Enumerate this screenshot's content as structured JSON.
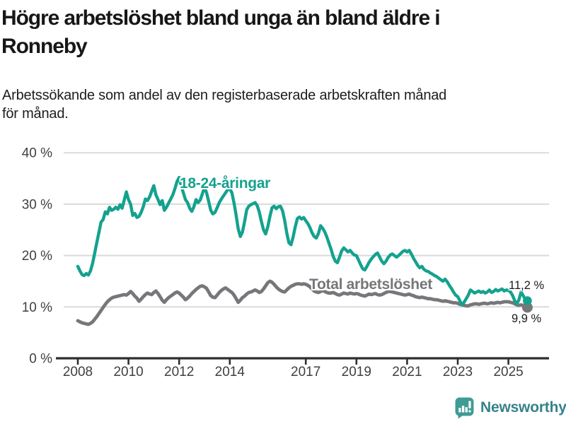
{
  "header": {
    "title_lines": [
      "Högre arbetslöshet bland unga än bland äldre i",
      "Ronneby"
    ],
    "subtitle_lines": [
      "Arbetssökande som andel av den registerbaserade arbetskraften månad",
      "för månad."
    ]
  },
  "chart_data": {
    "type": "line",
    "title": "Högre arbetslöshet bland unga än bland äldre i Ronneby",
    "subtitle": "Arbetssökande som andel av den registerbaserade arbetskraften månad för månad.",
    "x_start_year": 2008,
    "x_months_per_point": 1,
    "x_ticks": [
      2008,
      2010,
      2012,
      2014,
      2017,
      2019,
      2021,
      2023,
      2025
    ],
    "y_ticks": [
      0,
      10,
      20,
      30,
      40
    ],
    "y_tick_suffix": " %",
    "ylim": [
      0,
      40
    ],
    "grid": true,
    "legend_position": "inline-labels",
    "grid_color": "#dadada",
    "axis_color": "#2e2e2e",
    "tick_text_color": "#404040",
    "series": [
      {
        "name": "18-24-åringar",
        "color": "#14a28e",
        "end_label": "11,2 %",
        "end_value": 11.2,
        "values": [
          17.9,
          17.0,
          16.3,
          16.1,
          16.5,
          16.2,
          17.0,
          18.5,
          20.5,
          22.5,
          24.5,
          26.5,
          27.0,
          28.5,
          28.1,
          29.4,
          28.8,
          29.0,
          29.4,
          29.0,
          29.9,
          29.2,
          30.8,
          32.4,
          30.9,
          30.0,
          27.8,
          28.2,
          27.4,
          27.6,
          28.4,
          29.5,
          31.0,
          30.7,
          31.4,
          32.5,
          33.6,
          31.8,
          30.9,
          29.9,
          30.7,
          28.8,
          29.4,
          30.2,
          31.0,
          31.8,
          33.0,
          34.4,
          35.2,
          33.5,
          32.2,
          30.9,
          30.3,
          29.2,
          28.6,
          29.5,
          30.9,
          30.3,
          30.8,
          32.0,
          33.3,
          32.2,
          30.5,
          28.8,
          28.1,
          28.4,
          29.3,
          30.3,
          31.0,
          31.6,
          32.2,
          32.8,
          33.0,
          32.2,
          30.2,
          27.8,
          25.2,
          23.7,
          24.6,
          26.6,
          28.9,
          29.6,
          29.9,
          30.1,
          30.3,
          29.7,
          28.4,
          26.6,
          25.0,
          24.2,
          25.6,
          27.6,
          29.3,
          29.6,
          29.1,
          29.5,
          29.6,
          28.7,
          26.8,
          24.4,
          22.5,
          22.1,
          23.6,
          25.6,
          27.2,
          27.5,
          27.1,
          27.4,
          26.8,
          26.2,
          25.4,
          24.4,
          23.7,
          23.4,
          24.3,
          25.8,
          25.3,
          24.6,
          23.6,
          22.4,
          21.2,
          19.8,
          18.9,
          18.6,
          19.7,
          20.9,
          21.5,
          21.1,
          20.7,
          21.0,
          20.5,
          20.1,
          20.0,
          19.1,
          18.2,
          17.4,
          17.2,
          17.9,
          18.7,
          19.3,
          19.8,
          20.2,
          20.5,
          19.7,
          18.9,
          18.4,
          18.9,
          19.6,
          20.1,
          20.3,
          20.0,
          19.7,
          20.0,
          20.4,
          20.8,
          21.0,
          20.7,
          21.0,
          20.3,
          19.5,
          18.8,
          18.1,
          17.6,
          17.9,
          17.3,
          17.0,
          16.9,
          16.6,
          16.4,
          16.1,
          15.9,
          15.6,
          15.3,
          15.0,
          15.4,
          14.9,
          14.2,
          13.6,
          12.9,
          12.3,
          12.0,
          11.2,
          10.4,
          10.9,
          11.6,
          12.3,
          13.3,
          13.0,
          12.7,
          12.9,
          13.1,
          12.8,
          13.0,
          12.7,
          12.9,
          13.3,
          12.8,
          13.0,
          13.4,
          13.1,
          13.3,
          13.5,
          13.1,
          13.3,
          13.2,
          12.9,
          12.2,
          11.2,
          10.6,
          11.4,
          12.9,
          12.2,
          11.4,
          11.2
        ]
      },
      {
        "name": "Total arbetslöshet",
        "color": "#77777b",
        "end_label": "9,9 %",
        "end_value": 9.9,
        "values": [
          7.3,
          7.1,
          6.9,
          6.8,
          6.7,
          6.6,
          6.8,
          7.1,
          7.6,
          8.1,
          8.7,
          9.3,
          9.9,
          10.5,
          11.0,
          11.4,
          11.7,
          11.9,
          12.0,
          12.1,
          12.2,
          12.3,
          12.4,
          12.3,
          12.6,
          13.0,
          12.6,
          12.1,
          11.7,
          11.1,
          11.5,
          12.0,
          12.4,
          12.7,
          12.5,
          12.4,
          12.8,
          13.1,
          12.6,
          12.0,
          11.3,
          10.9,
          11.4,
          11.8,
          12.1,
          12.4,
          12.7,
          12.9,
          12.7,
          12.3,
          11.9,
          11.4,
          11.7,
          12.1,
          12.6,
          13.0,
          13.4,
          13.7,
          14.0,
          14.1,
          13.9,
          13.6,
          12.9,
          12.2,
          11.9,
          11.8,
          12.3,
          12.8,
          13.2,
          13.5,
          13.7,
          13.4,
          13.1,
          12.8,
          12.3,
          11.6,
          10.9,
          11.3,
          11.8,
          12.1,
          12.5,
          12.8,
          12.9,
          13.1,
          13.3,
          13.1,
          12.8,
          13.0,
          13.5,
          14.1,
          14.7,
          15.0,
          14.8,
          14.4,
          13.9,
          13.5,
          13.2,
          13.0,
          12.9,
          13.3,
          13.7,
          14.0,
          14.2,
          14.4,
          14.5,
          14.5,
          14.4,
          14.5,
          14.4,
          14.2,
          13.9,
          13.5,
          13.1,
          12.9,
          12.8,
          13.0,
          13.2,
          13.0,
          12.8,
          12.7,
          12.7,
          12.8,
          12.6,
          12.4,
          12.3,
          12.5,
          12.7,
          12.6,
          12.5,
          12.7,
          12.6,
          12.5,
          12.6,
          12.5,
          12.3,
          12.2,
          12.1,
          12.3,
          12.5,
          12.4,
          12.5,
          12.6,
          12.4,
          12.3,
          12.4,
          12.6,
          12.8,
          13.0,
          13.0,
          12.9,
          12.8,
          12.7,
          12.6,
          12.5,
          12.4,
          12.3,
          12.4,
          12.5,
          12.3,
          12.2,
          12.0,
          11.9,
          11.8,
          11.9,
          11.8,
          11.7,
          11.6,
          11.6,
          11.5,
          11.4,
          11.4,
          11.3,
          11.2,
          11.1,
          11.2,
          11.1,
          11.0,
          10.9,
          10.8,
          10.8,
          10.7,
          10.5,
          10.4,
          10.3,
          10.2,
          10.2,
          10.4,
          10.5,
          10.6,
          10.6,
          10.5,
          10.6,
          10.7,
          10.7,
          10.6,
          10.7,
          10.8,
          10.7,
          10.8,
          10.9,
          10.8,
          10.9,
          11.0,
          11.0,
          11.0,
          10.9,
          10.8,
          10.6,
          10.4,
          10.3,
          10.4,
          10.3,
          10.1,
          9.9
        ]
      }
    ]
  },
  "footer": {
    "brand": "Newsworthy",
    "brand_icon": "bar-chart-speech-bubble-icon",
    "brand_icon_color": "#3e9c95",
    "brand_text_color": "#36828b"
  }
}
